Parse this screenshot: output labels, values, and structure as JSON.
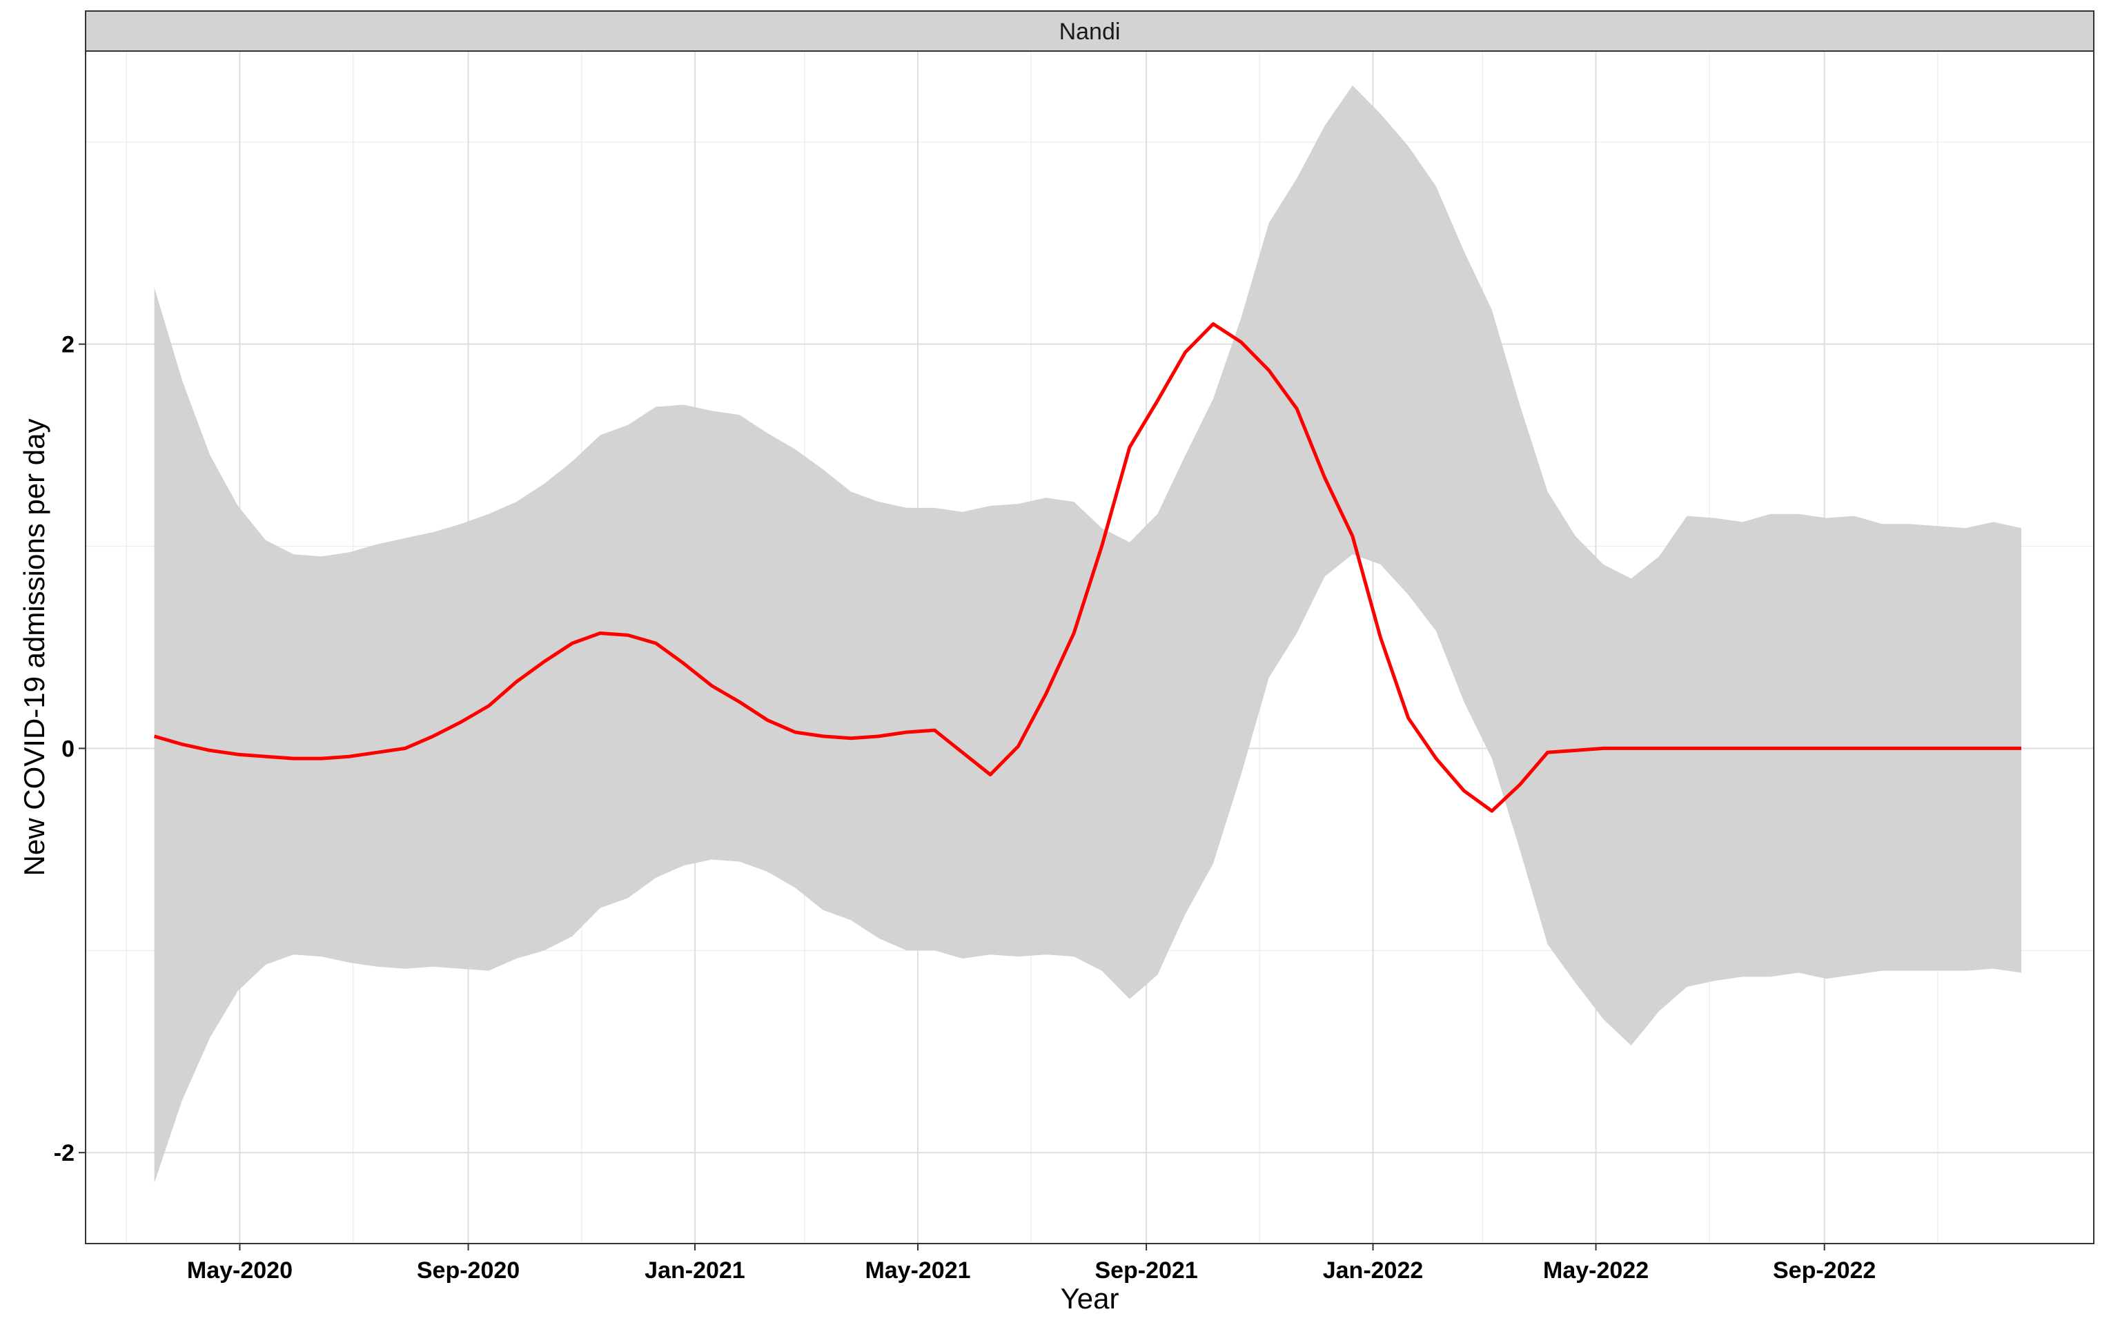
{
  "chart_data": {
    "type": "line",
    "panel_label": "Nandi",
    "xlabel": "Year",
    "ylabel": "New COVID-19 admissions per day",
    "ylim": [
      -2.45,
      3.45
    ],
    "xlim": [
      "2020-02-08",
      "2023-01-24"
    ],
    "yticks": [
      -2,
      0,
      2
    ],
    "ytick_labels": [
      "-2",
      "0",
      "2"
    ],
    "xticks": [
      "2020-05-01",
      "2020-09-01",
      "2021-01-01",
      "2021-05-01",
      "2021-09-01",
      "2022-01-01",
      "2022-05-01",
      "2022-09-01"
    ],
    "xtick_labels": [
      "May-2020",
      "Sep-2020",
      "Jan-2021",
      "May-2021",
      "Sep-2021",
      "Jan-2022",
      "May-2022",
      "Sep-2022"
    ],
    "x_minor_ticks": [
      "2020-03-01",
      "2020-07-01",
      "2020-11-01",
      "2021-03-01",
      "2021-07-01",
      "2021-11-01",
      "2022-03-01",
      "2022-07-01",
      "2022-11-01"
    ],
    "y_minor_ticks": [
      -3,
      -1,
      1,
      3
    ],
    "grid": true,
    "legend": "none",
    "colors": {
      "line": "#ff0000",
      "ribbon": "#d3d3d3",
      "strip_fill": "#d3d3d3"
    },
    "series": [
      {
        "x": [
          "2020-03-16",
          "2020-03-31",
          "2020-04-15",
          "2020-04-30",
          "2020-05-15",
          "2020-05-30",
          "2020-06-14",
          "2020-06-29",
          "2020-07-14",
          "2020-07-29",
          "2020-08-13",
          "2020-08-28",
          "2020-09-12",
          "2020-09-27",
          "2020-10-12",
          "2020-10-27",
          "2020-11-11",
          "2020-11-26",
          "2020-12-11",
          "2020-12-26",
          "2021-01-10",
          "2021-01-25",
          "2021-02-09",
          "2021-02-24",
          "2021-03-11",
          "2021-03-26",
          "2021-04-10",
          "2021-04-25",
          "2021-05-10",
          "2021-05-25",
          "2021-06-09",
          "2021-06-24",
          "2021-07-09",
          "2021-07-24",
          "2021-08-08",
          "2021-08-23",
          "2021-09-07",
          "2021-09-22",
          "2021-10-07",
          "2021-10-22",
          "2021-11-06",
          "2021-11-21",
          "2021-12-06",
          "2021-12-21",
          "2022-01-05",
          "2022-01-20",
          "2022-02-04",
          "2022-02-19",
          "2022-03-06",
          "2022-03-21",
          "2022-04-05",
          "2022-04-20",
          "2022-05-05",
          "2022-05-20",
          "2022-06-04",
          "2022-06-19",
          "2022-07-04",
          "2022-07-19",
          "2022-08-03",
          "2022-08-18",
          "2022-09-02",
          "2022-09-17",
          "2022-10-02",
          "2022-10-17",
          "2022-11-01",
          "2022-11-16",
          "2022-12-01",
          "2022-12-16"
        ],
        "y": [
          0.06,
          0.02,
          -0.01,
          -0.03,
          -0.04,
          -0.05,
          -0.05,
          -0.04,
          -0.02,
          0.0,
          0.06,
          0.13,
          0.21,
          0.33,
          0.43,
          0.52,
          0.57,
          0.56,
          0.52,
          0.42,
          0.31,
          0.23,
          0.14,
          0.08,
          0.06,
          0.05,
          0.06,
          0.08,
          0.09,
          -0.02,
          -0.13,
          0.01,
          0.27,
          0.57,
          1.0,
          1.49,
          1.72,
          1.96,
          2.1,
          2.01,
          1.87,
          1.68,
          1.34,
          1.05,
          0.55,
          0.15,
          -0.05,
          -0.21,
          -0.31,
          -0.18,
          -0.02,
          -0.01,
          0.0,
          0.0,
          0.0,
          0.0,
          0.0,
          0.0,
          0.0,
          0.0,
          0.0,
          0.0,
          0.0,
          0.0,
          0.0,
          0.0,
          0.0,
          0.0
        ],
        "upper": [
          2.28,
          1.82,
          1.45,
          1.2,
          1.03,
          0.96,
          0.95,
          0.97,
          1.01,
          1.04,
          1.07,
          1.11,
          1.16,
          1.22,
          1.31,
          1.42,
          1.55,
          1.6,
          1.69,
          1.7,
          1.67,
          1.65,
          1.56,
          1.48,
          1.38,
          1.27,
          1.22,
          1.19,
          1.19,
          1.17,
          1.2,
          1.21,
          1.24,
          1.22,
          1.09,
          1.02,
          1.16,
          1.45,
          1.73,
          2.13,
          2.6,
          2.82,
          3.08,
          3.28,
          3.14,
          2.98,
          2.78,
          2.46,
          2.17,
          1.7,
          1.27,
          1.05,
          0.91,
          0.84,
          0.95,
          1.15,
          1.14,
          1.12,
          1.16,
          1.16,
          1.14,
          1.15,
          1.11,
          1.11,
          1.1,
          1.09,
          1.12,
          1.09
        ],
        "lower": [
          -2.15,
          -1.74,
          -1.43,
          -1.2,
          -1.07,
          -1.02,
          -1.03,
          -1.06,
          -1.08,
          -1.09,
          -1.08,
          -1.09,
          -1.1,
          -1.04,
          -1.0,
          -0.93,
          -0.79,
          -0.74,
          -0.64,
          -0.58,
          -0.55,
          -0.56,
          -0.61,
          -0.69,
          -0.8,
          -0.85,
          -0.94,
          -1.0,
          -1.0,
          -1.04,
          -1.02,
          -1.03,
          -1.02,
          -1.03,
          -1.1,
          -1.24,
          -1.12,
          -0.82,
          -0.57,
          -0.13,
          0.35,
          0.57,
          0.85,
          0.96,
          0.91,
          0.76,
          0.58,
          0.23,
          -0.05,
          -0.5,
          -0.97,
          -1.16,
          -1.34,
          -1.47,
          -1.3,
          -1.18,
          -1.15,
          -1.13,
          -1.13,
          -1.11,
          -1.14,
          -1.12,
          -1.1,
          -1.1,
          -1.1,
          -1.1,
          -1.09,
          -1.11
        ]
      }
    ]
  }
}
